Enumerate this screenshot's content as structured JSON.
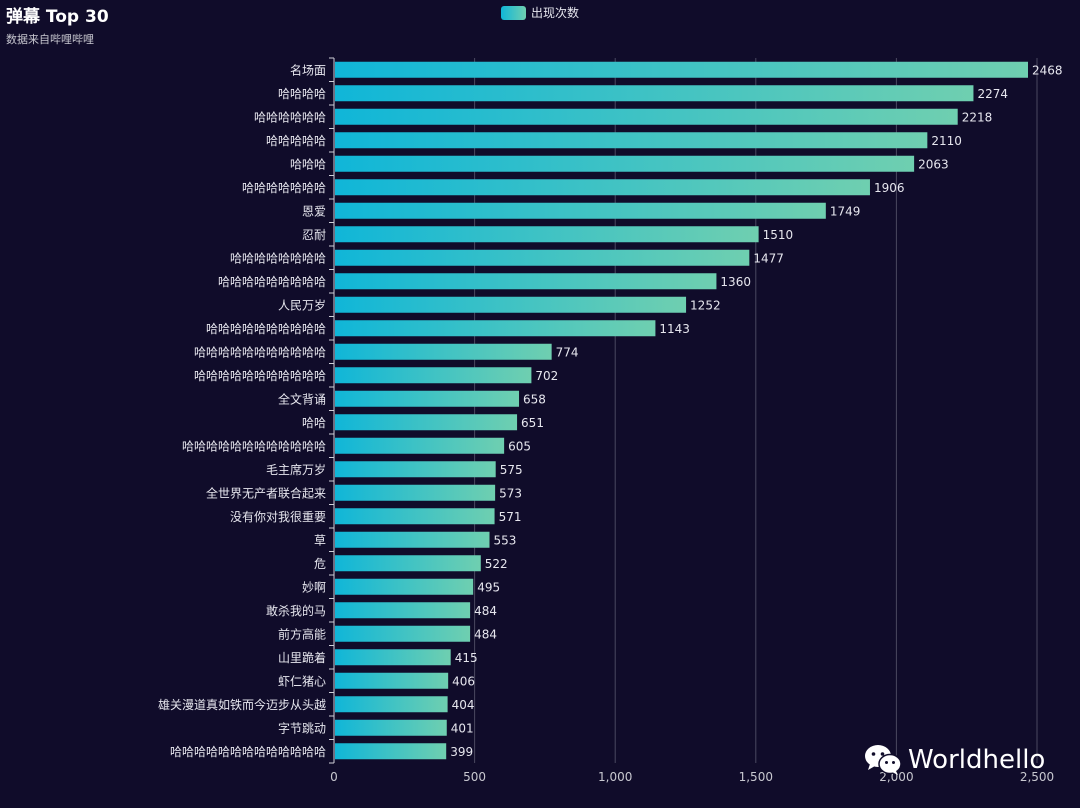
{
  "title": "弹幕 Top 30",
  "subtitle": "数据来自哔哩哔哩",
  "legend": {
    "label": "出现次数",
    "icon": "legend-swatch"
  },
  "watermark": {
    "text": "Worldhello",
    "icon": "wechat-icon"
  },
  "colors": {
    "background": "#100c2a",
    "bar_start": "#10b6d8",
    "bar_end": "#6fcfb0",
    "grid": "#4a4860",
    "text": "#e6e6ee"
  },
  "chart_data": {
    "type": "bar",
    "orientation": "horizontal",
    "title": "弹幕 Top 30",
    "subtitle": "数据来自哔哩哔哩",
    "series": [
      {
        "name": "出现次数"
      }
    ],
    "categories": [
      "名场面",
      "哈哈哈哈",
      "哈哈哈哈哈哈",
      "哈哈哈哈哈",
      "哈哈哈",
      "哈哈哈哈哈哈哈",
      "恩爱",
      "忍耐",
      "哈哈哈哈哈哈哈哈",
      "哈哈哈哈哈哈哈哈哈",
      "人民万岁",
      "哈哈哈哈哈哈哈哈哈哈",
      "哈哈哈哈哈哈哈哈哈哈哈",
      "哈哈哈哈哈哈哈哈哈哈哈",
      "全文背诵",
      "哈哈",
      "哈哈哈哈哈哈哈哈哈哈哈哈",
      "毛主席万岁",
      "全世界无产者联合起来",
      "没有你对我很重要",
      "草",
      "危",
      "妙啊",
      "敢杀我的马",
      "前方高能",
      "山里跪着",
      "虾仁猪心",
      "雄关漫道真如铁而今迈步从头越",
      "字节跳动",
      "哈哈哈哈哈哈哈哈哈哈哈哈哈"
    ],
    "values": [
      2468,
      2274,
      2218,
      2110,
      2063,
      1906,
      1749,
      1510,
      1477,
      1360,
      1252,
      1143,
      774,
      702,
      658,
      651,
      605,
      575,
      573,
      571,
      553,
      522,
      495,
      484,
      484,
      415,
      406,
      404,
      401,
      399
    ],
    "xlim": [
      0,
      2500
    ],
    "xticks": [
      0,
      500,
      1000,
      1500,
      2000,
      2500
    ],
    "xtick_labels": [
      "0",
      "500",
      "1,000",
      "1,500",
      "2,000",
      "2,500"
    ],
    "grid": true,
    "legend_position": "top-center"
  }
}
